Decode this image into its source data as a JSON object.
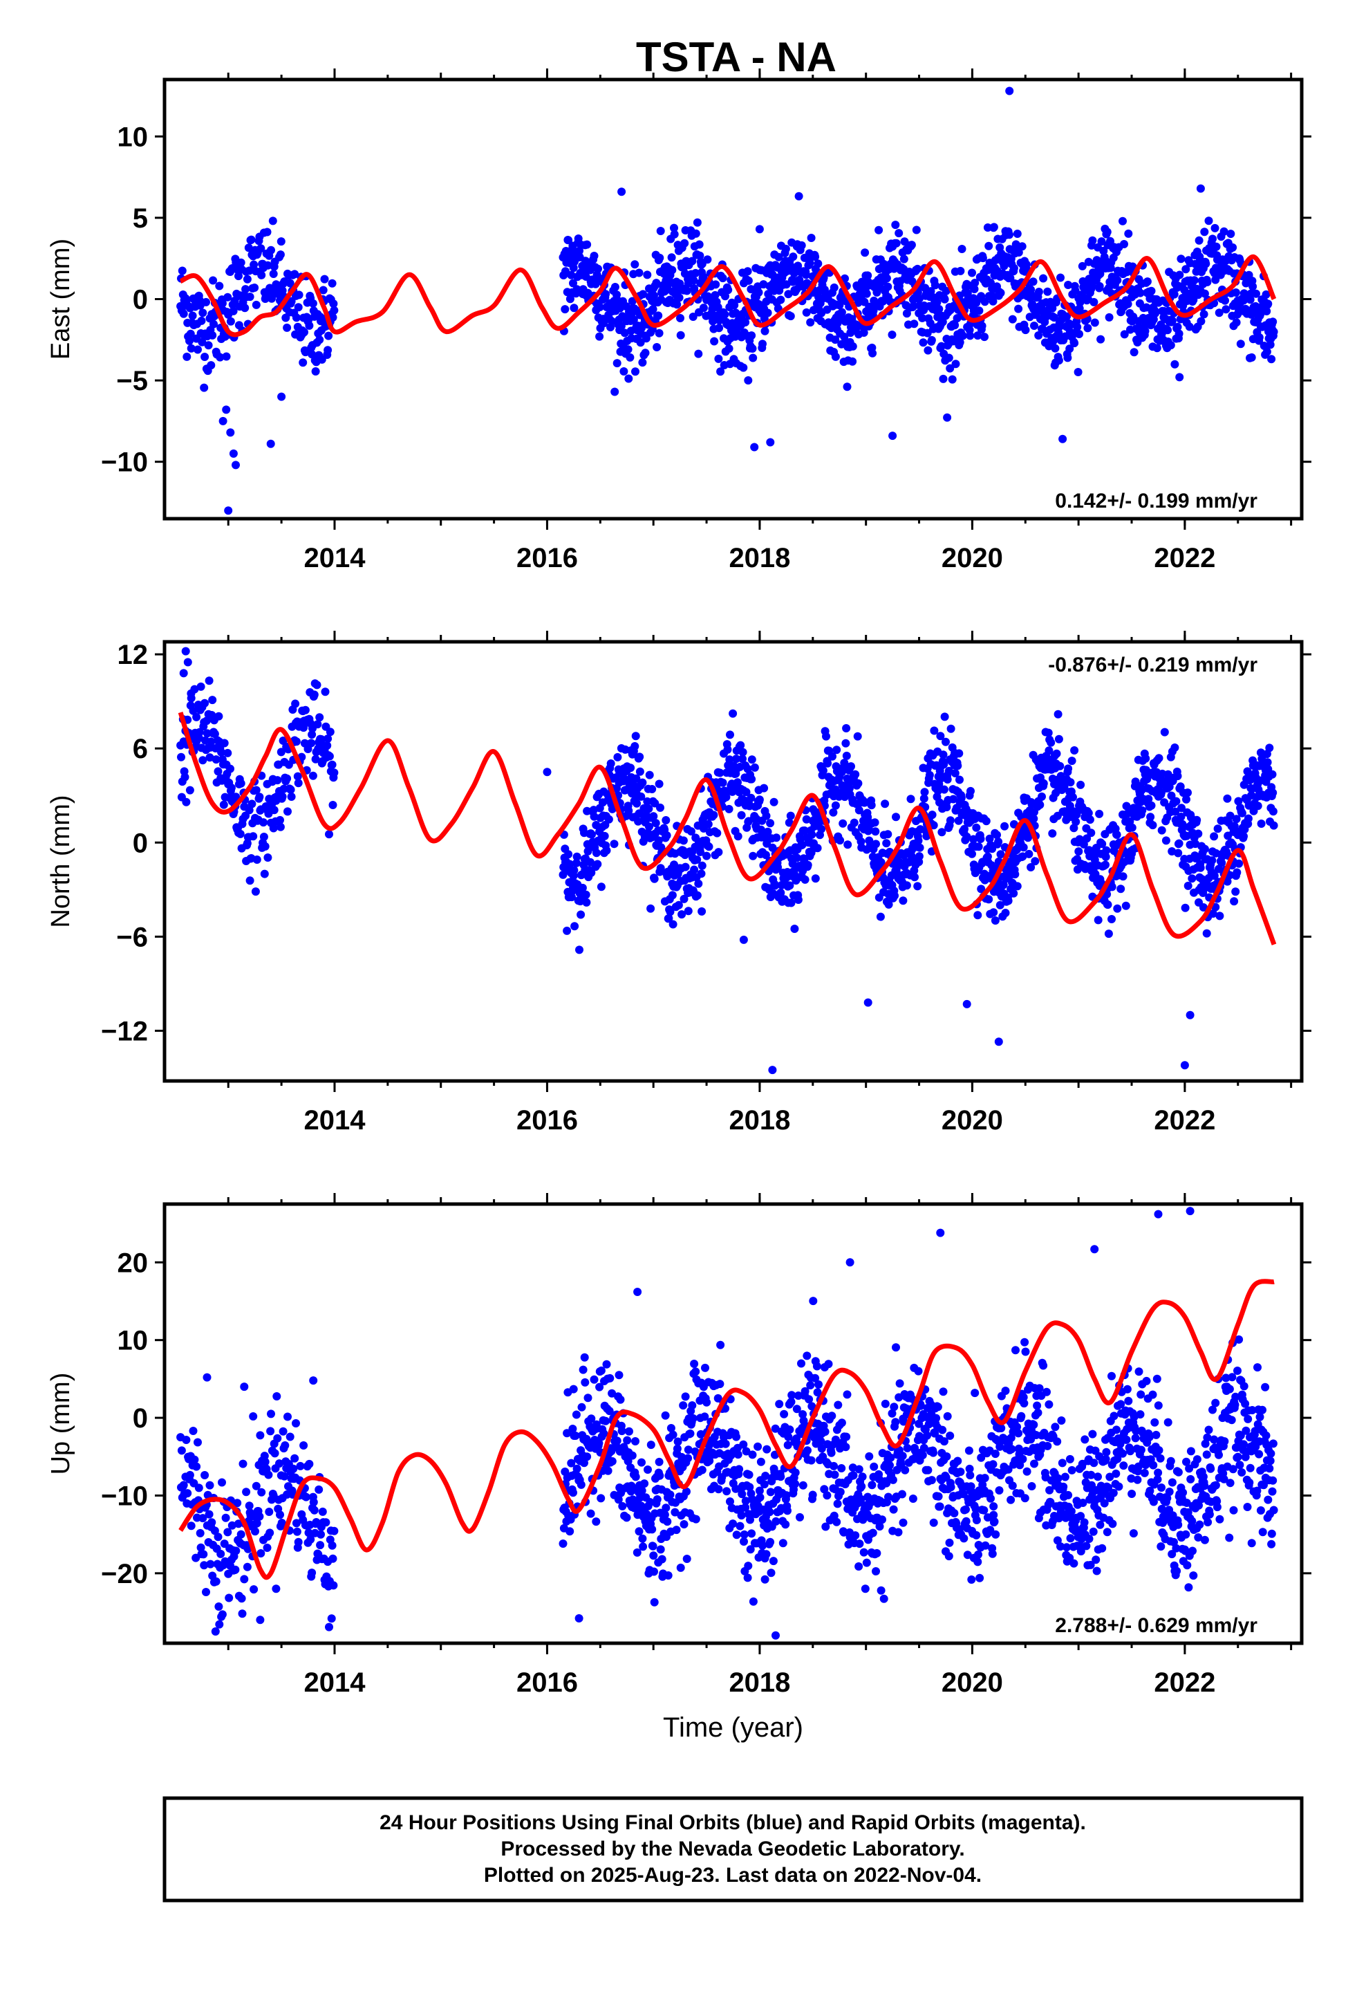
{
  "title": "TSTA - NA",
  "caption": {
    "line1": "24 Hour Positions Using Final Orbits (blue) and Rapid Orbits (magenta).",
    "line2": "Processed by the Nevada Geodetic Laboratory.",
    "line3": "Plotted on 2025-Aug-23. Last data on 2022-Nov-04."
  },
  "colors": {
    "final_orbits": "#0000ff",
    "model": "#ff0000",
    "frame": "#000000"
  },
  "chart_data": [
    {
      "type": "scatter",
      "ylabel": "East (mm)",
      "xlabel": "",
      "xlim": [
        2012.4,
        2023.1
      ],
      "ylim": [
        -13.5,
        13.5
      ],
      "xticks": [
        "2014",
        "2016",
        "2018",
        "2020",
        "2022"
      ],
      "yticks": [
        "10",
        "5",
        "0",
        "−5",
        "−10"
      ],
      "rate_label": "0.142+/- 0.199 mm/yr",
      "rate_position": "bottom-right",
      "grid": false,
      "series": [
        {
          "role": "observations",
          "segments": [
            {
              "x_start": 2012.55,
              "x_end": 2014.0,
              "step": 0.006,
              "center": 0.0,
              "amp": 1.8,
              "scatter": 1.4,
              "phase": 0.05
            },
            {
              "x_start": 2016.15,
              "x_end": 2022.84,
              "step": 0.0045,
              "center": 0.1,
              "amp": 1.8,
              "scatter": 1.4,
              "phase": 0.05
            }
          ],
          "outliers": [
            [
              2012.98,
              -6.8
            ],
            [
              2013.02,
              -8.2
            ],
            [
              2013.05,
              -9.5
            ],
            [
              2013.0,
              -13.0
            ],
            [
              2013.07,
              -10.2
            ],
            [
              2012.95,
              -7.5
            ],
            [
              2013.4,
              -8.9
            ],
            [
              2013.5,
              -6.0
            ],
            [
              2020.35,
              12.8
            ],
            [
              2017.95,
              -9.1
            ],
            [
              2018.1,
              -8.8
            ],
            [
              2019.25,
              -8.4
            ],
            [
              2020.85,
              -8.6
            ],
            [
              2016.7,
              6.6
            ],
            [
              2022.15,
              6.8
            ],
            [
              2018.0,
              4.3
            ],
            [
              2021.95,
              -4.8
            ]
          ]
        },
        {
          "role": "model",
          "points": [
            [
              2012.55,
              1.1
            ],
            [
              2012.7,
              1.4
            ],
            [
              2012.85,
              0.0
            ],
            [
              2013.0,
              -2.0
            ],
            [
              2013.15,
              -2.0
            ],
            [
              2013.3,
              -1.1
            ],
            [
              2013.45,
              -0.8
            ],
            [
              2013.6,
              0.5
            ],
            [
              2013.75,
              1.5
            ],
            [
              2013.9,
              -0.5
            ],
            [
              2014.0,
              -2.0
            ],
            [
              2014.2,
              -1.4
            ],
            [
              2014.45,
              -0.8
            ],
            [
              2014.7,
              1.5
            ],
            [
              2014.9,
              -0.5
            ],
            [
              2015.05,
              -2.0
            ],
            [
              2015.3,
              -1.0
            ],
            [
              2015.5,
              -0.4
            ],
            [
              2015.75,
              1.8
            ],
            [
              2015.95,
              -0.5
            ],
            [
              2016.1,
              -1.8
            ],
            [
              2016.3,
              -0.8
            ],
            [
              2016.5,
              0.5
            ],
            [
              2016.65,
              1.9
            ],
            [
              2016.85,
              0.0
            ],
            [
              2017.0,
              -1.6
            ],
            [
              2017.25,
              -0.7
            ],
            [
              2017.45,
              0.5
            ],
            [
              2017.65,
              2.0
            ],
            [
              2017.85,
              0.0
            ],
            [
              2018.0,
              -1.6
            ],
            [
              2018.25,
              -0.6
            ],
            [
              2018.45,
              0.4
            ],
            [
              2018.65,
              2.0
            ],
            [
              2018.85,
              0.0
            ],
            [
              2019.0,
              -1.5
            ],
            [
              2019.25,
              -0.4
            ],
            [
              2019.45,
              0.6
            ],
            [
              2019.65,
              2.3
            ],
            [
              2019.85,
              0.0
            ],
            [
              2020.0,
              -1.3
            ],
            [
              2020.25,
              -0.5
            ],
            [
              2020.45,
              0.6
            ],
            [
              2020.65,
              2.3
            ],
            [
              2020.85,
              0.0
            ],
            [
              2021.0,
              -1.1
            ],
            [
              2021.25,
              -0.2
            ],
            [
              2021.45,
              0.7
            ],
            [
              2021.65,
              2.5
            ],
            [
              2021.85,
              0.0
            ],
            [
              2022.0,
              -1.0
            ],
            [
              2022.25,
              0.0
            ],
            [
              2022.45,
              0.8
            ],
            [
              2022.65,
              2.6
            ],
            [
              2022.84,
              0.0
            ]
          ]
        }
      ]
    },
    {
      "type": "scatter",
      "ylabel": "North (mm)",
      "xlabel": "",
      "xlim": [
        2012.4,
        2023.1
      ],
      "ylim": [
        -15.2,
        12.8
      ],
      "xticks": [
        "2014",
        "2016",
        "2018",
        "2020",
        "2022"
      ],
      "yticks": [
        "12",
        "6",
        "0",
        "−6",
        "−12"
      ],
      "rate_label": "-0.876+/- 0.219 mm/yr",
      "rate_position": "top-right",
      "grid": false,
      "series": [
        {
          "role": "observations",
          "segments": [
            {
              "x_start": 2012.55,
              "x_end": 2014.0,
              "step": 0.006,
              "center": 4.0,
              "amp": 3.2,
              "scatter": 1.5,
              "phase": 0.5
            },
            {
              "x_start": 2016.15,
              "x_end": 2022.84,
              "step": 0.0045,
              "center": 0.9,
              "amp": 3.2,
              "scatter": 1.5,
              "phase": 0.5
            }
          ],
          "outliers": [
            [
              2012.6,
              12.2
            ],
            [
              2012.62,
              11.5
            ],
            [
              2012.58,
              10.8
            ],
            [
              2012.65,
              9.5
            ],
            [
              2012.7,
              8.0
            ],
            [
              2018.12,
              -14.5
            ],
            [
              2020.25,
              -12.7
            ],
            [
              2022.0,
              -14.2
            ],
            [
              2022.05,
              -11.0
            ],
            [
              2019.95,
              -10.3
            ],
            [
              2019.02,
              -10.2
            ],
            [
              2017.85,
              -6.2
            ],
            [
              2016.0,
              4.5
            ],
            [
              2019.6,
              4.3
            ],
            [
              2022.4,
              2.8
            ]
          ]
        },
        {
          "role": "model",
          "points": [
            [
              2012.55,
              8.3
            ],
            [
              2012.7,
              5.0
            ],
            [
              2012.85,
              2.5
            ],
            [
              2013.0,
              2.0
            ],
            [
              2013.2,
              3.5
            ],
            [
              2013.35,
              5.5
            ],
            [
              2013.5,
              7.2
            ],
            [
              2013.7,
              4.5
            ],
            [
              2013.9,
              1.2
            ],
            [
              2014.05,
              1.3
            ],
            [
              2014.25,
              3.5
            ],
            [
              2014.5,
              6.5
            ],
            [
              2014.7,
              3.5
            ],
            [
              2014.9,
              0.2
            ],
            [
              2015.1,
              1.2
            ],
            [
              2015.3,
              3.5
            ],
            [
              2015.5,
              5.8
            ],
            [
              2015.7,
              2.5
            ],
            [
              2015.9,
              -0.8
            ],
            [
              2016.1,
              0.5
            ],
            [
              2016.3,
              2.5
            ],
            [
              2016.5,
              4.8
            ],
            [
              2016.7,
              1.5
            ],
            [
              2016.9,
              -1.6
            ],
            [
              2017.15,
              -0.3
            ],
            [
              2017.3,
              1.5
            ],
            [
              2017.5,
              4.0
            ],
            [
              2017.7,
              0.5
            ],
            [
              2017.9,
              -2.3
            ],
            [
              2018.15,
              -0.8
            ],
            [
              2018.3,
              0.8
            ],
            [
              2018.5,
              3.0
            ],
            [
              2018.7,
              -0.2
            ],
            [
              2018.9,
              -3.3
            ],
            [
              2019.15,
              -1.8
            ],
            [
              2019.3,
              -0.3
            ],
            [
              2019.5,
              2.2
            ],
            [
              2019.7,
              -1.2
            ],
            [
              2019.9,
              -4.2
            ],
            [
              2020.15,
              -3.0
            ],
            [
              2020.3,
              -1.2
            ],
            [
              2020.5,
              1.4
            ],
            [
              2020.7,
              -2.0
            ],
            [
              2020.9,
              -5.0
            ],
            [
              2021.15,
              -3.8
            ],
            [
              2021.3,
              -2.2
            ],
            [
              2021.5,
              0.5
            ],
            [
              2021.7,
              -3.0
            ],
            [
              2021.9,
              -5.9
            ],
            [
              2022.15,
              -5.0
            ],
            [
              2022.3,
              -3.2
            ],
            [
              2022.5,
              -0.5
            ],
            [
              2022.65,
              -3.0
            ],
            [
              2022.84,
              -6.5
            ]
          ]
        }
      ]
    },
    {
      "type": "scatter",
      "ylabel": "Up (mm)",
      "xlabel": "Time (year)",
      "xlim": [
        2012.4,
        2023.1
      ],
      "ylim": [
        -29,
        27.5
      ],
      "xticks": [
        "2014",
        "2016",
        "2018",
        "2020",
        "2022"
      ],
      "yticks": [
        "20",
        "10",
        "0",
        "−10",
        "−20"
      ],
      "rate_label": "2.788+/- 0.629 mm/yr",
      "rate_position": "bottom-right",
      "grid": false,
      "series": [
        {
          "role": "observations",
          "segments": [
            {
              "x_start": 2012.55,
              "x_end": 2014.0,
              "step": 0.006,
              "center": -12.0,
              "amp": 5.5,
              "scatter": 4.5,
              "phase": 0.25
            },
            {
              "x_start": 2016.15,
              "x_end": 2022.84,
              "step": 0.0045,
              "center": -7.0,
              "amp": 6.0,
              "scatter": 4.5,
              "phase": 0.25
            }
          ],
          "outliers": [
            [
              2012.8,
              5.2
            ],
            [
              2013.15,
              4.0
            ],
            [
              2013.8,
              4.8
            ],
            [
              2013.3,
              -26.0
            ],
            [
              2016.3,
              -25.8
            ],
            [
              2016.85,
              16.2
            ],
            [
              2018.05,
              -20.8
            ],
            [
              2018.15,
              -28.0
            ],
            [
              2019.7,
              23.8
            ],
            [
              2020.2,
              -12.5
            ],
            [
              2020.22,
              -15.0
            ],
            [
              2021.75,
              26.2
            ],
            [
              2022.05,
              26.6
            ],
            [
              2022.35,
              -6.5
            ],
            [
              2018.85,
              20.0
            ],
            [
              2021.15,
              21.7
            ],
            [
              2019.35,
              -13.5
            ]
          ]
        },
        {
          "role": "model",
          "points": [
            [
              2012.55,
              -14.5
            ],
            [
              2012.7,
              -11.5
            ],
            [
              2012.85,
              -10.5
            ],
            [
              2013.0,
              -11.0
            ],
            [
              2013.15,
              -13.5
            ],
            [
              2013.3,
              -19.5
            ],
            [
              2013.4,
              -20.0
            ],
            [
              2013.55,
              -14.0
            ],
            [
              2013.7,
              -8.5
            ],
            [
              2013.85,
              -7.8
            ],
            [
              2014.0,
              -9.0
            ],
            [
              2014.15,
              -13.0
            ],
            [
              2014.3,
              -17.0
            ],
            [
              2014.45,
              -13.5
            ],
            [
              2014.6,
              -7.0
            ],
            [
              2014.75,
              -4.8
            ],
            [
              2014.9,
              -5.5
            ],
            [
              2015.05,
              -8.5
            ],
            [
              2015.2,
              -13.5
            ],
            [
              2015.3,
              -14.3
            ],
            [
              2015.45,
              -9.5
            ],
            [
              2015.6,
              -3.5
            ],
            [
              2015.75,
              -1.8
            ],
            [
              2015.9,
              -3.0
            ],
            [
              2016.05,
              -6.0
            ],
            [
              2016.2,
              -10.5
            ],
            [
              2016.3,
              -11.8
            ],
            [
              2016.5,
              -6.0
            ],
            [
              2016.65,
              0.0
            ],
            [
              2016.8,
              0.5
            ],
            [
              2017.0,
              -1.5
            ],
            [
              2017.15,
              -5.5
            ],
            [
              2017.3,
              -8.8
            ],
            [
              2017.5,
              -2.5
            ],
            [
              2017.7,
              3.0
            ],
            [
              2017.85,
              3.2
            ],
            [
              2018.0,
              1.0
            ],
            [
              2018.15,
              -3.5
            ],
            [
              2018.3,
              -6.2
            ],
            [
              2018.5,
              0.0
            ],
            [
              2018.7,
              5.5
            ],
            [
              2018.85,
              5.8
            ],
            [
              2019.0,
              3.5
            ],
            [
              2019.15,
              -1.0
            ],
            [
              2019.3,
              -3.5
            ],
            [
              2019.5,
              3.0
            ],
            [
              2019.65,
              8.5
            ],
            [
              2019.85,
              9.0
            ],
            [
              2020.0,
              6.8
            ],
            [
              2020.15,
              2.0
            ],
            [
              2020.3,
              -0.5
            ],
            [
              2020.5,
              6.0
            ],
            [
              2020.7,
              11.5
            ],
            [
              2020.85,
              12.0
            ],
            [
              2021.0,
              10.0
            ],
            [
              2021.15,
              5.0
            ],
            [
              2021.3,
              2.0
            ],
            [
              2021.5,
              8.5
            ],
            [
              2021.7,
              14.0
            ],
            [
              2021.85,
              14.8
            ],
            [
              2022.0,
              13.0
            ],
            [
              2022.15,
              8.5
            ],
            [
              2022.3,
              5.0
            ],
            [
              2022.5,
              12.0
            ],
            [
              2022.65,
              17.0
            ],
            [
              2022.84,
              17.5
            ]
          ]
        }
      ]
    }
  ]
}
